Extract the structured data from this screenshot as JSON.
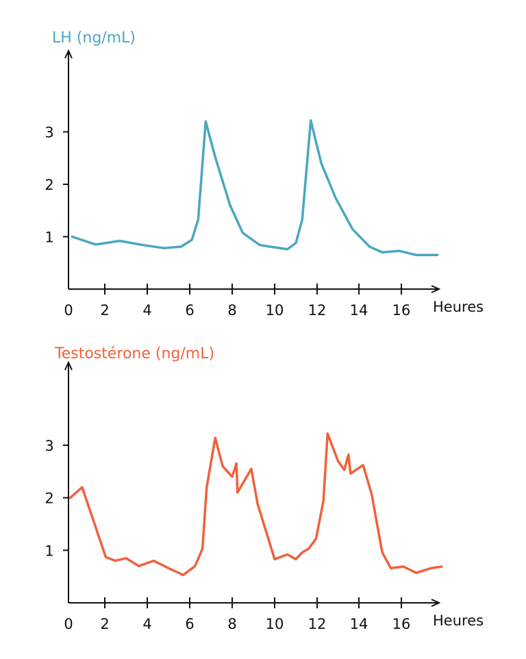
{
  "chart_data": [
    {
      "type": "line",
      "title": "LH (ng/mL)",
      "xlabel": "Heures",
      "ylabel": "LH (ng/mL)",
      "color": "#4aa7c2",
      "xlim": [
        0,
        18
      ],
      "ylim": [
        0,
        4.2
      ],
      "xticks": [
        0,
        2,
        4,
        6,
        8,
        10,
        12,
        14,
        16
      ],
      "yticks": [
        1,
        2,
        3
      ],
      "grid": false,
      "series": [
        {
          "x": [
            0.2,
            1.5,
            2.7,
            3.8,
            4.8,
            5.6,
            6.1,
            6.4,
            6.75,
            7.2,
            7.9,
            8.5,
            9.3,
            10.6,
            11.0,
            11.3,
            11.7,
            12.2,
            12.9,
            13.7,
            14.5,
            15.1,
            15.9,
            16.7,
            17.7
          ],
          "y": [
            1.0,
            0.85,
            0.92,
            0.84,
            0.78,
            0.81,
            0.94,
            1.33,
            3.2,
            2.52,
            1.6,
            1.07,
            0.84,
            0.76,
            0.88,
            1.33,
            3.22,
            2.4,
            1.73,
            1.14,
            0.81,
            0.7,
            0.73,
            0.65,
            0.65
          ]
        }
      ]
    },
    {
      "type": "line",
      "title": "Testostérone (ng/mL)",
      "xlabel": "Heures",
      "ylabel": "Testostérone (ng/mL)",
      "color": "#f0613b",
      "xlim": [
        0,
        18
      ],
      "ylim": [
        0,
        4.5
      ],
      "xticks": [
        0,
        2,
        4,
        6,
        8,
        10,
        12,
        14,
        16
      ],
      "yticks": [
        1,
        2,
        3
      ],
      "grid": false,
      "series": [
        {
          "x": [
            0.1,
            0.75,
            2.05,
            2.5,
            3.0,
            3.6,
            4.3,
            5.1,
            5.7,
            6.25,
            6.6,
            6.8,
            7.2,
            7.55,
            8.0,
            8.2,
            8.25,
            8.9,
            9.2,
            10.0,
            10.6,
            11.0,
            11.3,
            11.6,
            11.95,
            12.3,
            12.5,
            13.0,
            13.3,
            13.5,
            13.6,
            14.2,
            14.6,
            15.1,
            15.5,
            16.1,
            16.7,
            17.4,
            17.9
          ],
          "y": [
            2.0,
            2.2,
            0.87,
            0.8,
            0.85,
            0.7,
            0.8,
            0.64,
            0.53,
            0.7,
            1.03,
            2.2,
            3.14,
            2.6,
            2.4,
            2.65,
            2.1,
            2.55,
            1.88,
            0.83,
            0.92,
            0.83,
            0.96,
            1.03,
            1.22,
            1.94,
            3.22,
            2.7,
            2.53,
            2.82,
            2.46,
            2.62,
            2.07,
            0.96,
            0.66,
            0.69,
            0.57,
            0.66,
            0.69
          ]
        }
      ]
    }
  ]
}
